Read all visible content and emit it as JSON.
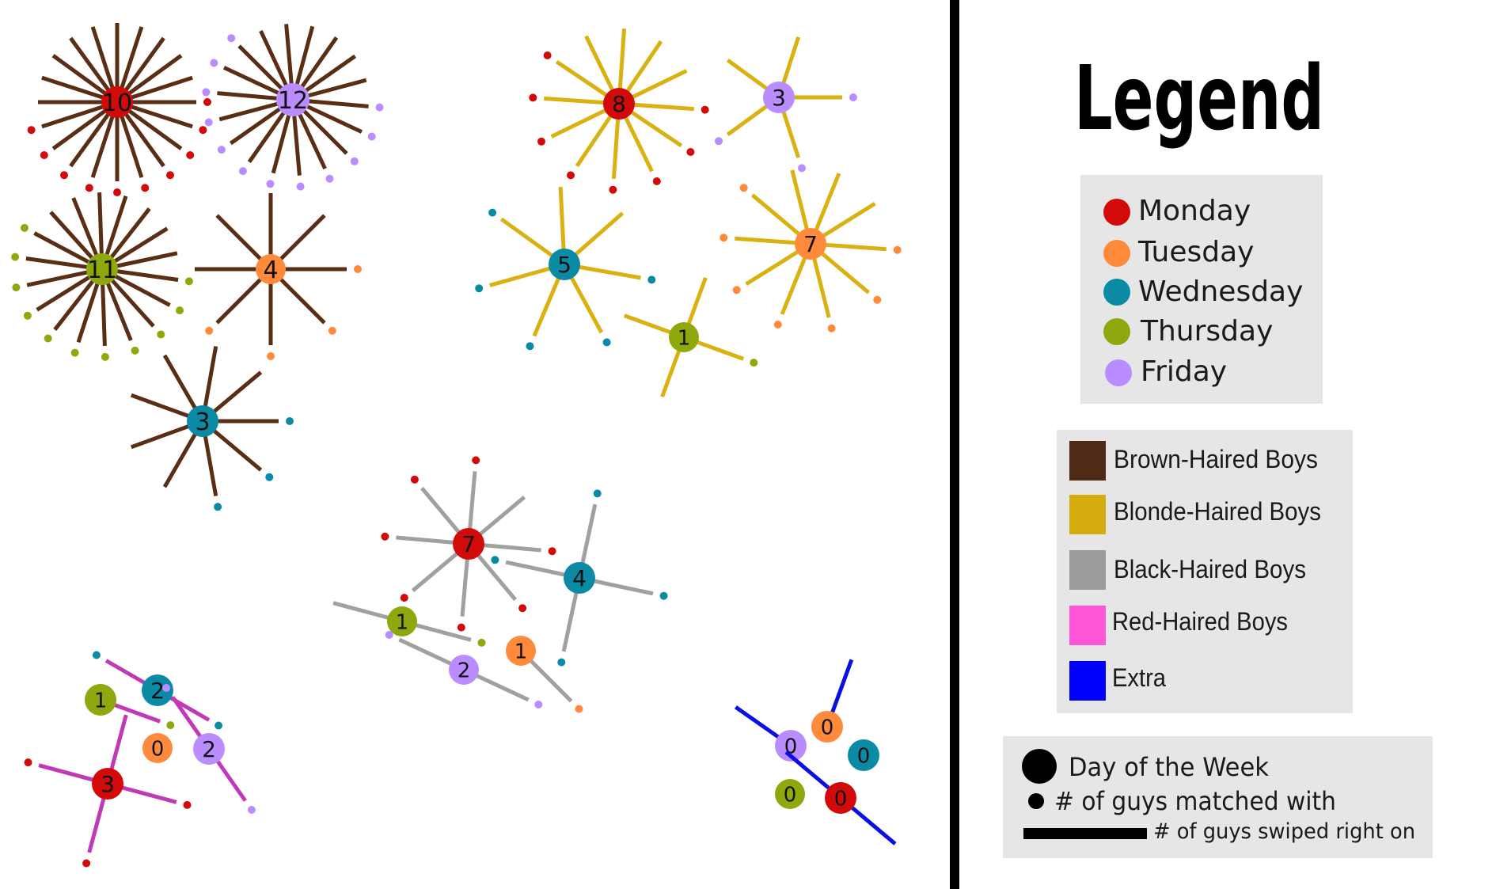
{
  "legend": {
    "title": "Legend",
    "days": [
      {
        "label": "Monday",
        "color": "#d20a0a"
      },
      {
        "label": "Tuesday",
        "color": "#ff8a3c"
      },
      {
        "label": "Wednesday",
        "color": "#0b8aa6"
      },
      {
        "label": "Thursday",
        "color": "#8ea80e"
      },
      {
        "label": "Friday",
        "color": "#b98cff"
      }
    ],
    "hair": [
      {
        "label": "Brown-Haired Boys",
        "color": "#4e2a17"
      },
      {
        "label": "Blonde-Haired Boys",
        "color": "#d4ac0d"
      },
      {
        "label": "Black-Haired Boys",
        "color": "#9b9b9b"
      },
      {
        "label": "Red-Haired Boys",
        "color": "#ff55d8"
      },
      {
        "label": "Extra",
        "color": "#0000ff"
      }
    ],
    "key": {
      "circle": "Day of the Week",
      "dot": "# of guys matched with",
      "line": "# of guys swiped right on"
    }
  },
  "groups": [
    {
      "hair": "Brown-Haired Boys",
      "color": "#5a2e14",
      "nodes": [
        {
          "day": "Monday",
          "matched": "10",
          "swiped": 20
        },
        {
          "day": "Friday",
          "matched": "12",
          "swiped": 18
        },
        {
          "day": "Thursday",
          "matched": "11",
          "swiped": 18
        },
        {
          "day": "Tuesday",
          "matched": "4",
          "swiped": 8
        },
        {
          "day": "Wednesday",
          "matched": "3",
          "swiped": 9
        }
      ]
    },
    {
      "hair": "Blonde-Haired Boys",
      "color": "#d9b211",
      "nodes": [
        {
          "day": "Monday",
          "matched": "8",
          "swiped": 12
        },
        {
          "day": "Friday",
          "matched": "3",
          "swiped": 5
        },
        {
          "day": "Wednesday",
          "matched": "5",
          "swiped": 7
        },
        {
          "day": "Tuesday",
          "matched": "7",
          "swiped": 10
        },
        {
          "day": "Thursday",
          "matched": "1",
          "swiped": 4
        }
      ]
    },
    {
      "hair": "Black-Haired Boys",
      "color": "#a0a0a0",
      "nodes": [
        {
          "day": "Monday",
          "matched": "7",
          "swiped": 8
        },
        {
          "day": "Wednesday",
          "matched": "4",
          "swiped": 4
        },
        {
          "day": "Thursday",
          "matched": "1",
          "swiped": 2
        },
        {
          "day": "Friday",
          "matched": "2",
          "swiped": 2
        },
        {
          "day": "Tuesday",
          "matched": "1",
          "swiped": 1
        }
      ]
    },
    {
      "hair": "Red-Haired Boys",
      "color": "#c13ab5",
      "nodes": [
        {
          "day": "Thursday",
          "matched": "1",
          "swiped": 1
        },
        {
          "day": "Wednesday",
          "matched": "2",
          "swiped": 2
        },
        {
          "day": "Tuesday",
          "matched": "0",
          "swiped": 0
        },
        {
          "day": "Friday",
          "matched": "2",
          "swiped": 2
        },
        {
          "day": "Monday",
          "matched": "3",
          "swiped": 4
        }
      ]
    },
    {
      "hair": "Extra",
      "color": "#0a10e0",
      "nodes": [
        {
          "day": "Friday",
          "matched": "0",
          "swiped": 1
        },
        {
          "day": "Tuesday",
          "matched": "0",
          "swiped": 1
        },
        {
          "day": "Wednesday",
          "matched": "0",
          "swiped": 0
        },
        {
          "day": "Thursday",
          "matched": "0",
          "swiped": 0
        },
        {
          "day": "Monday",
          "matched": "0",
          "swiped": 2
        }
      ]
    }
  ]
}
